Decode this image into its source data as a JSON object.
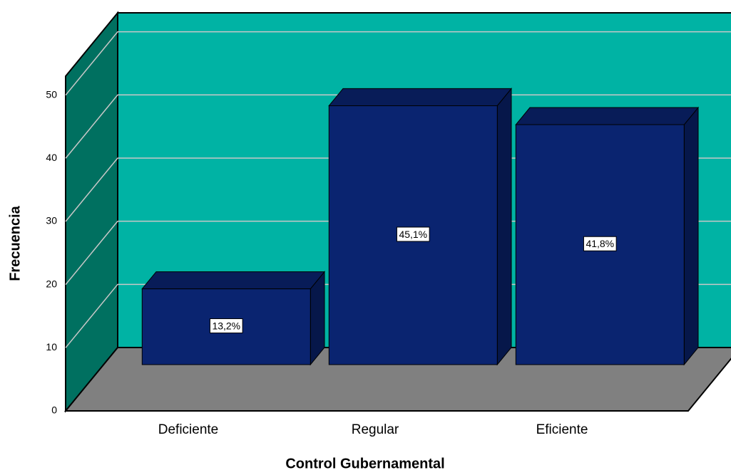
{
  "chart_data": {
    "type": "bar3d",
    "x_label": "Control Gubernamental",
    "y_label": "Frecuencia",
    "categories": [
      "Deficiente",
      "Regular",
      "Eficiente"
    ],
    "values": [
      12,
      41,
      38
    ],
    "bar_labels": [
      "13,2%",
      "45,1%",
      "41,8%"
    ],
    "color": "#0a2470",
    "wall_color": "#00b3a4",
    "floor_color": "#808080",
    "ylim": [
      0,
      53
    ],
    "yticks": [
      0,
      10,
      20,
      30,
      40,
      50
    ],
    "grid": true
  }
}
